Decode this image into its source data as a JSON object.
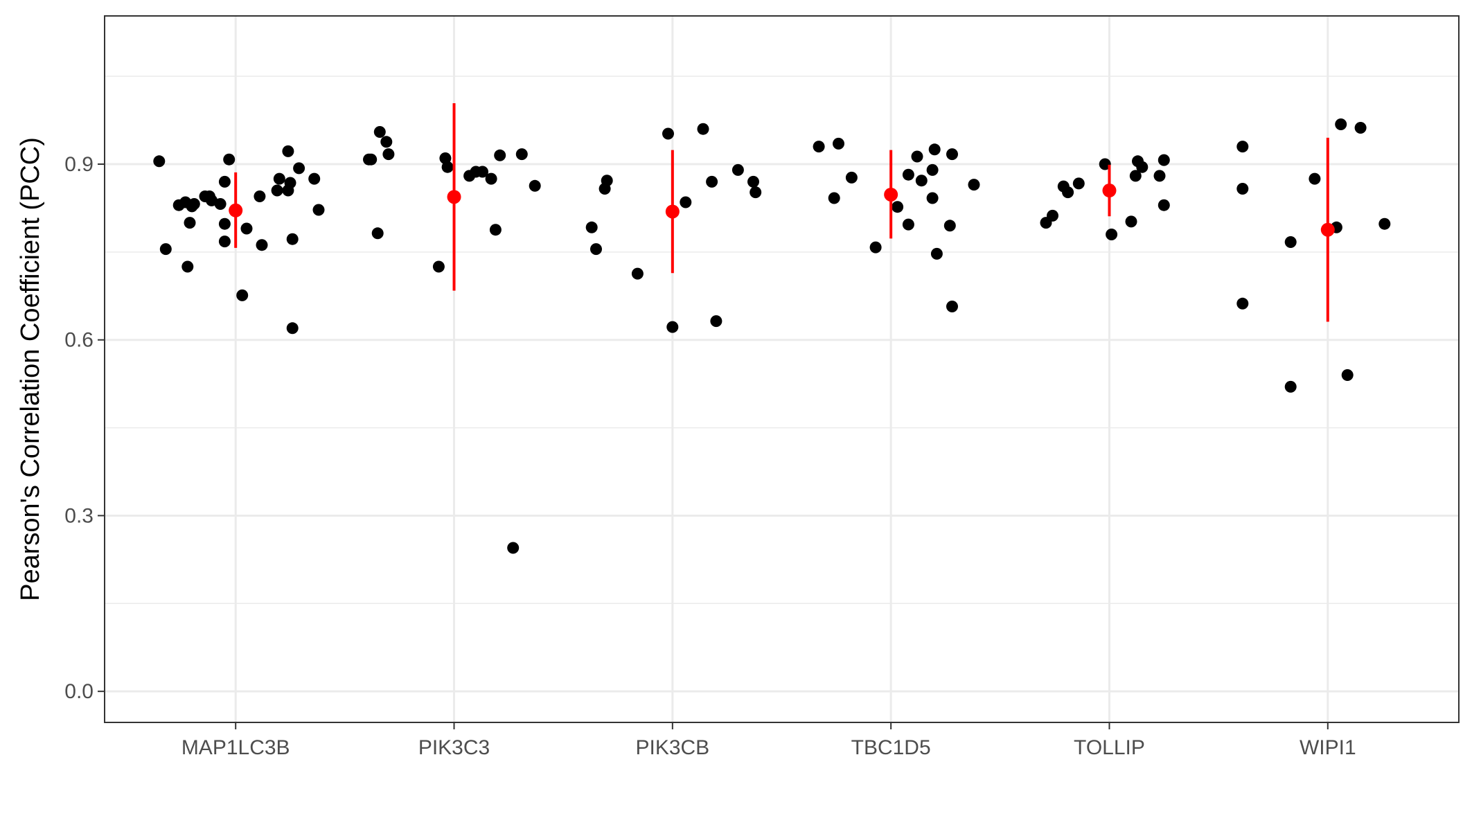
{
  "chart_data": {
    "type": "scatter",
    "xlabel": "",
    "ylabel": "Pearson's Correlation Coefficient (PCC)",
    "ylim": [
      -0.053,
      1.153
    ],
    "yticks": [
      0.0,
      0.3,
      0.6,
      0.9
    ],
    "ytick_labels": [
      "0.0",
      "0.3",
      "0.6",
      "0.9"
    ],
    "categories": [
      "MAP1LC3B",
      "PIK3C3",
      "PIK3CB",
      "TBC1D5",
      "TOLLIP",
      "WIPI1"
    ],
    "grid": true,
    "legend": "none",
    "colors": {
      "points": "#000000",
      "summary": "#ff0000",
      "grid": "#ebebeb",
      "panel_border": "#333333"
    },
    "points": [
      {
        "category": "MAP1LC3B",
        "jitter": -0.35,
        "y": 0.905
      },
      {
        "category": "MAP1LC3B",
        "jitter": -0.32,
        "y": 0.755
      },
      {
        "category": "MAP1LC3B",
        "jitter": -0.26,
        "y": 0.83
      },
      {
        "category": "MAP1LC3B",
        "jitter": -0.23,
        "y": 0.835
      },
      {
        "category": "MAP1LC3B",
        "jitter": -0.22,
        "y": 0.725
      },
      {
        "category": "MAP1LC3B",
        "jitter": -0.21,
        "y": 0.8
      },
      {
        "category": "MAP1LC3B",
        "jitter": -0.2,
        "y": 0.828
      },
      {
        "category": "MAP1LC3B",
        "jitter": -0.19,
        "y": 0.832
      },
      {
        "category": "MAP1LC3B",
        "jitter": -0.14,
        "y": 0.845
      },
      {
        "category": "MAP1LC3B",
        "jitter": -0.12,
        "y": 0.845
      },
      {
        "category": "MAP1LC3B",
        "jitter": -0.11,
        "y": 0.838
      },
      {
        "category": "MAP1LC3B",
        "jitter": -0.07,
        "y": 0.832
      },
      {
        "category": "MAP1LC3B",
        "jitter": -0.05,
        "y": 0.87
      },
      {
        "category": "MAP1LC3B",
        "jitter": -0.05,
        "y": 0.798
      },
      {
        "category": "MAP1LC3B",
        "jitter": -0.05,
        "y": 0.768
      },
      {
        "category": "MAP1LC3B",
        "jitter": -0.03,
        "y": 0.908
      },
      {
        "category": "MAP1LC3B",
        "jitter": 0.03,
        "y": 0.676
      },
      {
        "category": "MAP1LC3B",
        "jitter": 0.05,
        "y": 0.79
      },
      {
        "category": "MAP1LC3B",
        "jitter": 0.11,
        "y": 0.845
      },
      {
        "category": "MAP1LC3B",
        "jitter": 0.12,
        "y": 0.762
      },
      {
        "category": "MAP1LC3B",
        "jitter": 0.19,
        "y": 0.855
      },
      {
        "category": "MAP1LC3B",
        "jitter": 0.2,
        "y": 0.875
      },
      {
        "category": "MAP1LC3B",
        "jitter": 0.24,
        "y": 0.922
      },
      {
        "category": "MAP1LC3B",
        "jitter": 0.24,
        "y": 0.855
      },
      {
        "category": "MAP1LC3B",
        "jitter": 0.25,
        "y": 0.868
      },
      {
        "category": "MAP1LC3B",
        "jitter": 0.26,
        "y": 0.62
      },
      {
        "category": "MAP1LC3B",
        "jitter": 0.26,
        "y": 0.772
      },
      {
        "category": "MAP1LC3B",
        "jitter": 0.29,
        "y": 0.893
      },
      {
        "category": "MAP1LC3B",
        "jitter": 0.36,
        "y": 0.875
      },
      {
        "category": "MAP1LC3B",
        "jitter": 0.38,
        "y": 0.822
      },
      {
        "category": "PIK3C3",
        "jitter": -0.39,
        "y": 0.908
      },
      {
        "category": "PIK3C3",
        "jitter": -0.38,
        "y": 0.908
      },
      {
        "category": "PIK3C3",
        "jitter": -0.35,
        "y": 0.782
      },
      {
        "category": "PIK3C3",
        "jitter": -0.34,
        "y": 0.955
      },
      {
        "category": "PIK3C3",
        "jitter": -0.31,
        "y": 0.938
      },
      {
        "category": "PIK3C3",
        "jitter": -0.3,
        "y": 0.917
      },
      {
        "category": "PIK3C3",
        "jitter": -0.07,
        "y": 0.725
      },
      {
        "category": "PIK3C3",
        "jitter": -0.04,
        "y": 0.91
      },
      {
        "category": "PIK3C3",
        "jitter": -0.03,
        "y": 0.895
      },
      {
        "category": "PIK3C3",
        "jitter": 0.07,
        "y": 0.88
      },
      {
        "category": "PIK3C3",
        "jitter": 0.1,
        "y": 0.887
      },
      {
        "category": "PIK3C3",
        "jitter": 0.13,
        "y": 0.887
      },
      {
        "category": "PIK3C3",
        "jitter": 0.17,
        "y": 0.875
      },
      {
        "category": "PIK3C3",
        "jitter": 0.19,
        "y": 0.788
      },
      {
        "category": "PIK3C3",
        "jitter": 0.21,
        "y": 0.915
      },
      {
        "category": "PIK3C3",
        "jitter": 0.27,
        "y": 0.245
      },
      {
        "category": "PIK3C3",
        "jitter": 0.31,
        "y": 0.917
      },
      {
        "category": "PIK3C3",
        "jitter": 0.37,
        "y": 0.863
      },
      {
        "category": "PIK3CB",
        "jitter": -0.37,
        "y": 0.792
      },
      {
        "category": "PIK3CB",
        "jitter": -0.35,
        "y": 0.755
      },
      {
        "category": "PIK3CB",
        "jitter": -0.31,
        "y": 0.858
      },
      {
        "category": "PIK3CB",
        "jitter": -0.3,
        "y": 0.872
      },
      {
        "category": "PIK3CB",
        "jitter": -0.16,
        "y": 0.713
      },
      {
        "category": "PIK3CB",
        "jitter": -0.02,
        "y": 0.952
      },
      {
        "category": "PIK3CB",
        "jitter": 0.0,
        "y": 0.622
      },
      {
        "category": "PIK3CB",
        "jitter": 0.06,
        "y": 0.835
      },
      {
        "category": "PIK3CB",
        "jitter": 0.14,
        "y": 0.96
      },
      {
        "category": "PIK3CB",
        "jitter": 0.18,
        "y": 0.87
      },
      {
        "category": "PIK3CB",
        "jitter": 0.2,
        "y": 0.632
      },
      {
        "category": "PIK3CB",
        "jitter": 0.3,
        "y": 0.89
      },
      {
        "category": "PIK3CB",
        "jitter": 0.37,
        "y": 0.87
      },
      {
        "category": "PIK3CB",
        "jitter": 0.38,
        "y": 0.852
      },
      {
        "category": "TBC1D5",
        "jitter": -0.33,
        "y": 0.93
      },
      {
        "category": "TBC1D5",
        "jitter": -0.26,
        "y": 0.842
      },
      {
        "category": "TBC1D5",
        "jitter": -0.24,
        "y": 0.935
      },
      {
        "category": "TBC1D5",
        "jitter": -0.18,
        "y": 0.877
      },
      {
        "category": "TBC1D5",
        "jitter": -0.07,
        "y": 0.758
      },
      {
        "category": "TBC1D5",
        "jitter": 0.03,
        "y": 0.827
      },
      {
        "category": "TBC1D5",
        "jitter": 0.08,
        "y": 0.882
      },
      {
        "category": "TBC1D5",
        "jitter": 0.08,
        "y": 0.797
      },
      {
        "category": "TBC1D5",
        "jitter": 0.12,
        "y": 0.913
      },
      {
        "category": "TBC1D5",
        "jitter": 0.14,
        "y": 0.872
      },
      {
        "category": "TBC1D5",
        "jitter": 0.19,
        "y": 0.89
      },
      {
        "category": "TBC1D5",
        "jitter": 0.19,
        "y": 0.842
      },
      {
        "category": "TBC1D5",
        "jitter": 0.2,
        "y": 0.925
      },
      {
        "category": "TBC1D5",
        "jitter": 0.21,
        "y": 0.747
      },
      {
        "category": "TBC1D5",
        "jitter": 0.27,
        "y": 0.795
      },
      {
        "category": "TBC1D5",
        "jitter": 0.28,
        "y": 0.917
      },
      {
        "category": "TBC1D5",
        "jitter": 0.28,
        "y": 0.657
      },
      {
        "category": "TBC1D5",
        "jitter": 0.38,
        "y": 0.865
      },
      {
        "category": "TOLLIP",
        "jitter": -0.29,
        "y": 0.8
      },
      {
        "category": "TOLLIP",
        "jitter": -0.26,
        "y": 0.812
      },
      {
        "category": "TOLLIP",
        "jitter": -0.21,
        "y": 0.862
      },
      {
        "category": "TOLLIP",
        "jitter": -0.19,
        "y": 0.852
      },
      {
        "category": "TOLLIP",
        "jitter": -0.14,
        "y": 0.867
      },
      {
        "category": "TOLLIP",
        "jitter": -0.02,
        "y": 0.9
      },
      {
        "category": "TOLLIP",
        "jitter": 0.01,
        "y": 0.78
      },
      {
        "category": "TOLLIP",
        "jitter": 0.1,
        "y": 0.802
      },
      {
        "category": "TOLLIP",
        "jitter": 0.12,
        "y": 0.88
      },
      {
        "category": "TOLLIP",
        "jitter": 0.13,
        "y": 0.905
      },
      {
        "category": "TOLLIP",
        "jitter": 0.15,
        "y": 0.895
      },
      {
        "category": "TOLLIP",
        "jitter": 0.23,
        "y": 0.88
      },
      {
        "category": "TOLLIP",
        "jitter": 0.25,
        "y": 0.907
      },
      {
        "category": "TOLLIP",
        "jitter": 0.25,
        "y": 0.83
      },
      {
        "category": "WIPI1",
        "jitter": -0.39,
        "y": 0.93
      },
      {
        "category": "WIPI1",
        "jitter": -0.39,
        "y": 0.858
      },
      {
        "category": "WIPI1",
        "jitter": -0.39,
        "y": 0.662
      },
      {
        "category": "WIPI1",
        "jitter": -0.17,
        "y": 0.767
      },
      {
        "category": "WIPI1",
        "jitter": -0.17,
        "y": 0.52
      },
      {
        "category": "WIPI1",
        "jitter": -0.06,
        "y": 0.875
      },
      {
        "category": "WIPI1",
        "jitter": 0.04,
        "y": 0.792
      },
      {
        "category": "WIPI1",
        "jitter": 0.06,
        "y": 0.968
      },
      {
        "category": "WIPI1",
        "jitter": 0.09,
        "y": 0.54
      },
      {
        "category": "WIPI1",
        "jitter": 0.15,
        "y": 0.962
      },
      {
        "category": "WIPI1",
        "jitter": 0.26,
        "y": 0.798
      }
    ],
    "summary": [
      {
        "category": "MAP1LC3B",
        "mean": 0.821,
        "lower": 0.757,
        "upper": 0.886
      },
      {
        "category": "PIK3C3",
        "mean": 0.844,
        "lower": 0.684,
        "upper": 1.004
      },
      {
        "category": "PIK3CB",
        "mean": 0.819,
        "lower": 0.714,
        "upper": 0.924
      },
      {
        "category": "TBC1D5",
        "mean": 0.848,
        "lower": 0.773,
        "upper": 0.924
      },
      {
        "category": "TOLLIP",
        "mean": 0.855,
        "lower": 0.811,
        "upper": 0.899
      },
      {
        "category": "WIPI1",
        "mean": 0.788,
        "lower": 0.631,
        "upper": 0.945
      }
    ]
  }
}
